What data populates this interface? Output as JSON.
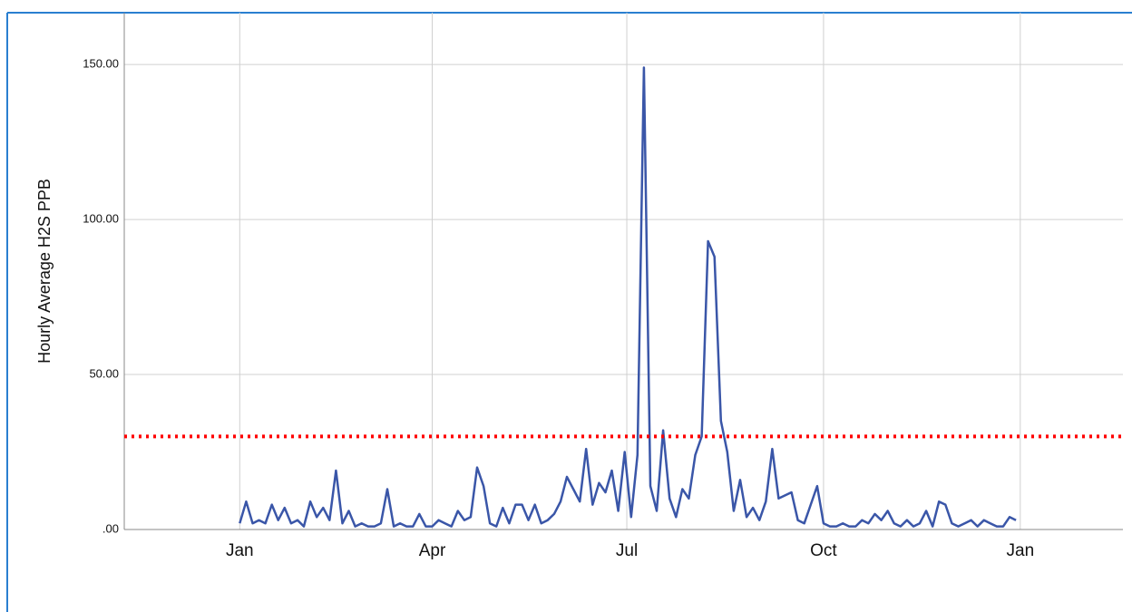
{
  "chart_data": {
    "type": "line",
    "y_label": "Hourly Average H2S PPB",
    "xlim": [
      -54,
      413
    ],
    "xticks": [
      {
        "value": 0,
        "label": "Jan"
      },
      {
        "value": 90,
        "label": "Apr"
      },
      {
        "value": 181,
        "label": "Jul"
      },
      {
        "value": 273,
        "label": "Oct"
      },
      {
        "value": 365,
        "label": "Jan"
      }
    ],
    "ylim": [
      0,
      166.7
    ],
    "yticks": [
      {
        "value": 0,
        "label": ".00"
      },
      {
        "value": 50,
        "label": "50.00"
      },
      {
        "value": 100,
        "label": "100.00"
      },
      {
        "value": 150,
        "label": "150.00"
      }
    ],
    "grid": true,
    "threshold": 30,
    "threshold_color": "#ff0000",
    "x": [
      0,
      3,
      6,
      9,
      12,
      15,
      18,
      21,
      24,
      27,
      30,
      33,
      36,
      39,
      42,
      45,
      48,
      51,
      54,
      57,
      60,
      63,
      66,
      69,
      72,
      75,
      78,
      81,
      84,
      87,
      90,
      93,
      96,
      99,
      102,
      105,
      108,
      111,
      114,
      117,
      120,
      123,
      126,
      129,
      132,
      135,
      138,
      141,
      144,
      147,
      150,
      153,
      156,
      159,
      162,
      165,
      168,
      171,
      174,
      177,
      180,
      183,
      186,
      189,
      192,
      195,
      198,
      201,
      204,
      207,
      210,
      213,
      216,
      219,
      222,
      225,
      228,
      231,
      234,
      237,
      240,
      243,
      246,
      249,
      252,
      255,
      258,
      261,
      264,
      267,
      270,
      273,
      276,
      279,
      282,
      285,
      288,
      291,
      294,
      297,
      300,
      303,
      306,
      309,
      312,
      315,
      318,
      321,
      324,
      327,
      330,
      333,
      336,
      339,
      342,
      345,
      348,
      351,
      354,
      357,
      360,
      363
    ],
    "series": [
      {
        "color": "#3a56a8",
        "values": [
          2,
          9,
          2,
          3,
          2,
          8,
          3,
          7,
          2,
          3,
          1,
          9,
          4,
          7,
          3,
          19,
          2,
          6,
          1,
          2,
          1,
          1,
          2,
          13,
          1,
          2,
          1,
          1,
          5,
          1,
          1,
          3,
          2,
          1,
          6,
          3,
          4,
          20,
          14,
          2,
          1,
          7,
          2,
          8,
          8,
          3,
          8,
          2,
          3,
          5,
          9,
          17,
          13,
          9,
          26,
          8,
          15,
          12,
          19,
          6,
          25,
          4,
          24,
          149,
          14,
          6,
          32,
          10,
          4,
          13,
          10,
          24,
          30,
          93,
          88,
          35,
          25,
          6,
          16,
          4,
          7,
          3,
          9,
          26,
          10,
          11,
          12,
          3,
          2,
          8,
          14,
          2,
          1,
          1,
          2,
          1,
          1,
          3,
          2,
          5,
          3,
          6,
          2,
          1,
          3,
          1,
          2,
          6,
          1,
          9,
          8,
          2,
          1,
          2,
          3,
          1,
          3,
          2,
          1,
          1,
          4,
          3
        ]
      }
    ]
  }
}
